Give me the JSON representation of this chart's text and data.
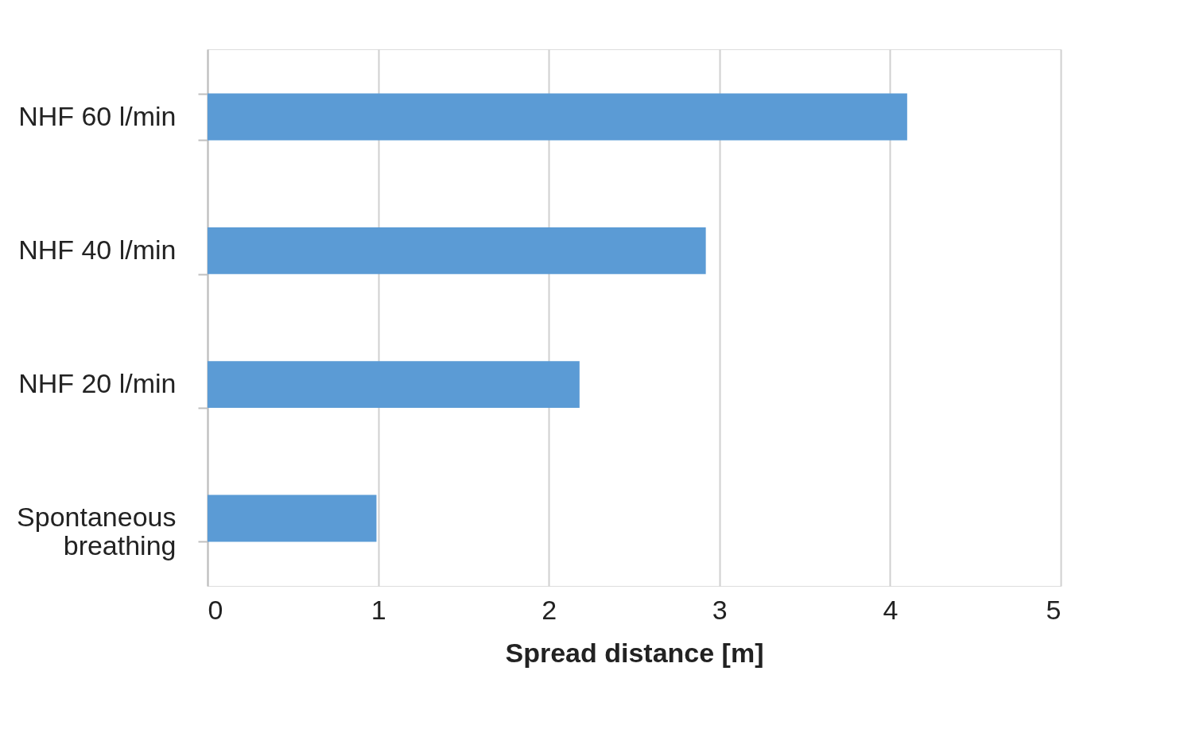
{
  "chart_data": {
    "type": "bar",
    "orientation": "horizontal",
    "xlabel": "Spread distance [m]",
    "categories": [
      "NHF 60 l/min",
      "NHF 40 l/min",
      "NHF 20 l/min",
      "Spontaneous breathing"
    ],
    "values": [
      4.1,
      2.92,
      2.18,
      0.99
    ],
    "color": "#5b9bd5",
    "xlim": [
      0,
      5
    ],
    "xticks": [
      0,
      1,
      2,
      3,
      4,
      5
    ],
    "grid": "x"
  }
}
